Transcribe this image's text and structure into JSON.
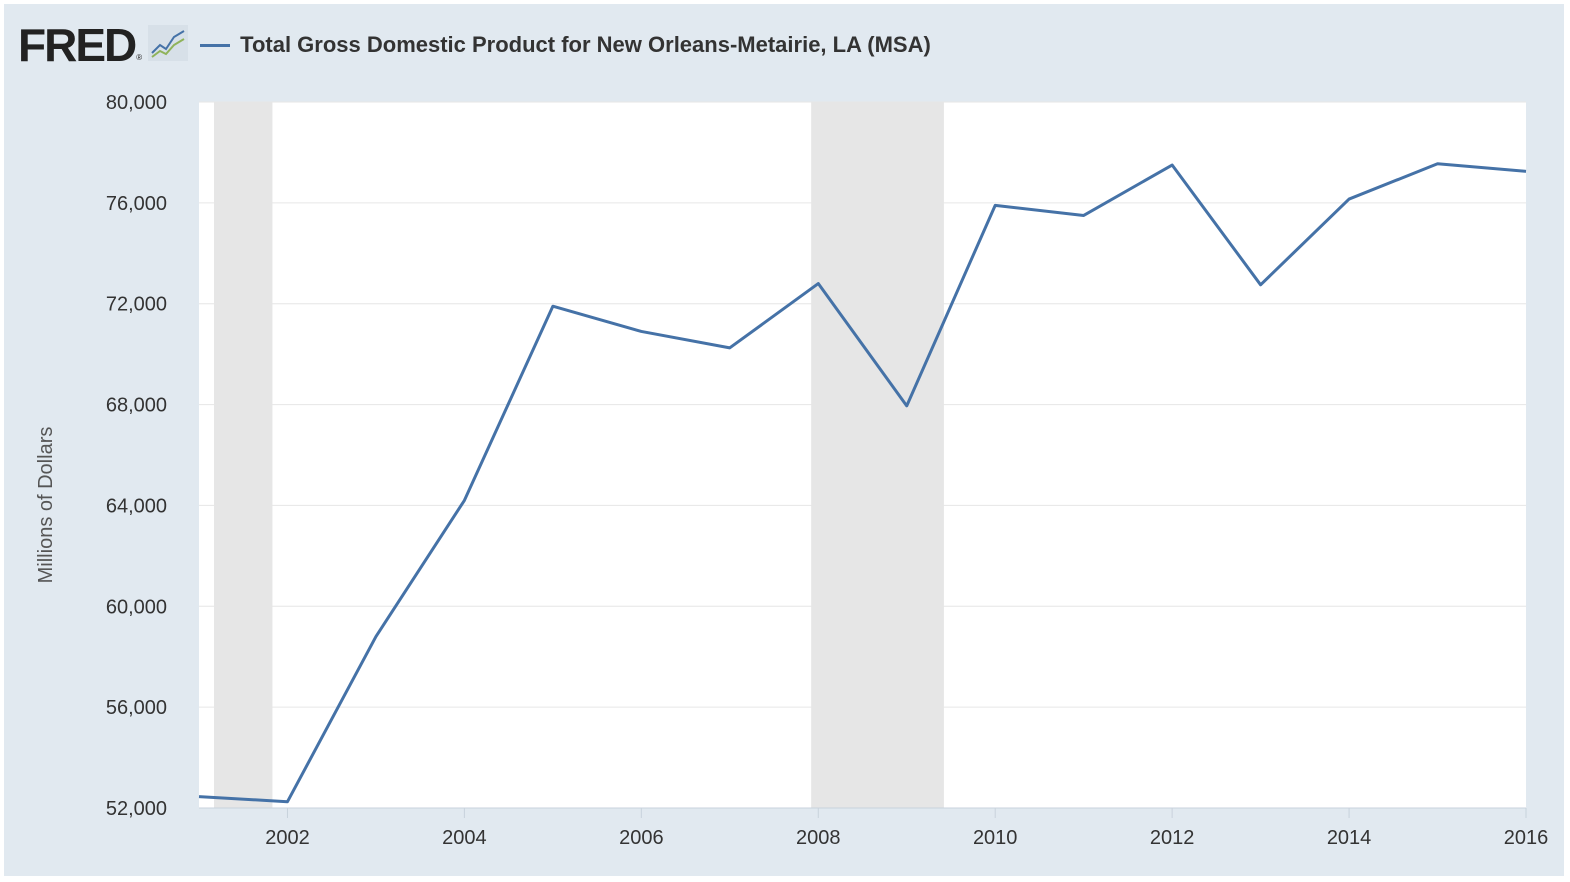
{
  "header": {
    "logo": "FRED",
    "logo_mark": "®"
  },
  "colors": {
    "background": "#e1e9f0",
    "plot_bg": "#ffffff",
    "line": "#4572a7",
    "recession": "#e6e6e6",
    "grid": "#e6e6e6"
  },
  "chart_data": {
    "type": "line",
    "title": "",
    "xlabel": "",
    "ylabel": "Millions of Dollars",
    "series": [
      {
        "name": "Total Gross Domestic Product for New Orleans-Metairie, LA (MSA)",
        "x": [
          2001,
          2002,
          2003,
          2004,
          2005,
          2006,
          2007,
          2008,
          2009,
          2010,
          2011,
          2012,
          2013,
          2014,
          2015,
          2016
        ],
        "values": [
          52450,
          52250,
          58800,
          64200,
          71900,
          70900,
          70250,
          72800,
          67950,
          75900,
          75500,
          77500,
          72750,
          76150,
          77550,
          77250
        ]
      }
    ],
    "xlim": [
      2001,
      2016
    ],
    "ylim": [
      52000,
      80000
    ],
    "x_ticks": [
      2002,
      2004,
      2006,
      2008,
      2010,
      2012,
      2014,
      2016
    ],
    "y_ticks": [
      52000,
      56000,
      60000,
      64000,
      68000,
      72000,
      76000,
      80000
    ],
    "y_tick_labels": [
      "52,000",
      "56,000",
      "60,000",
      "64,000",
      "68,000",
      "72,000",
      "76,000",
      "80,000"
    ],
    "x_tick_labels": [
      "2002",
      "2004",
      "2006",
      "2008",
      "2010",
      "2012",
      "2014",
      "2016"
    ],
    "recessions": [
      [
        2001.17,
        2001.83
      ],
      [
        2007.92,
        2009.42
      ]
    ],
    "grid": true,
    "legend": "top-left"
  }
}
